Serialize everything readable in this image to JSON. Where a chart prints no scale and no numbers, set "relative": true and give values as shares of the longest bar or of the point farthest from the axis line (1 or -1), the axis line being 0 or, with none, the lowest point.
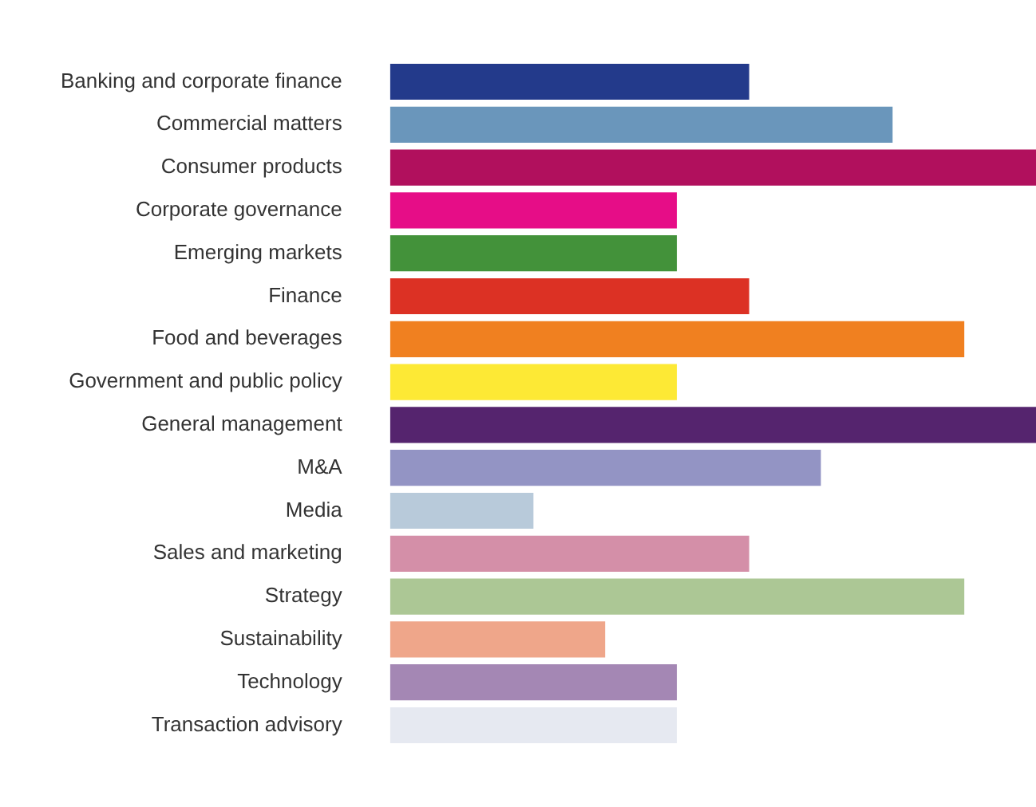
{
  "chart_data": {
    "type": "bar",
    "orientation": "horizontal",
    "relative": true,
    "legend": false,
    "grid": false,
    "categories": [
      "Banking and corporate finance",
      "Commercial matters",
      "Consumer products",
      "Corporate governance",
      "Emerging markets",
      "Finance",
      "Food and beverages",
      "Government and public policy",
      "General management",
      "M&A",
      "Media",
      "Sales and marketing",
      "Strategy",
      "Sustainability",
      "Technology",
      "Transaction advisory"
    ],
    "values": [
      0.556,
      0.778,
      1,
      0.444,
      0.444,
      0.556,
      0.889,
      0.444,
      1,
      0.667,
      0.222,
      0.556,
      0.889,
      0.333,
      0.444,
      0.444
    ],
    "colors": [
      "#233a8b",
      "#6a96bb",
      "#b1105d",
      "#e60d87",
      "#43923a",
      "#dc3124",
      "#f08020",
      "#fde935",
      "#55246e",
      "#9394c4",
      "#b8cada",
      "#d48fa8",
      "#acc795",
      "#efa68a",
      "#a487b4",
      "#e6e9f1"
    ]
  }
}
